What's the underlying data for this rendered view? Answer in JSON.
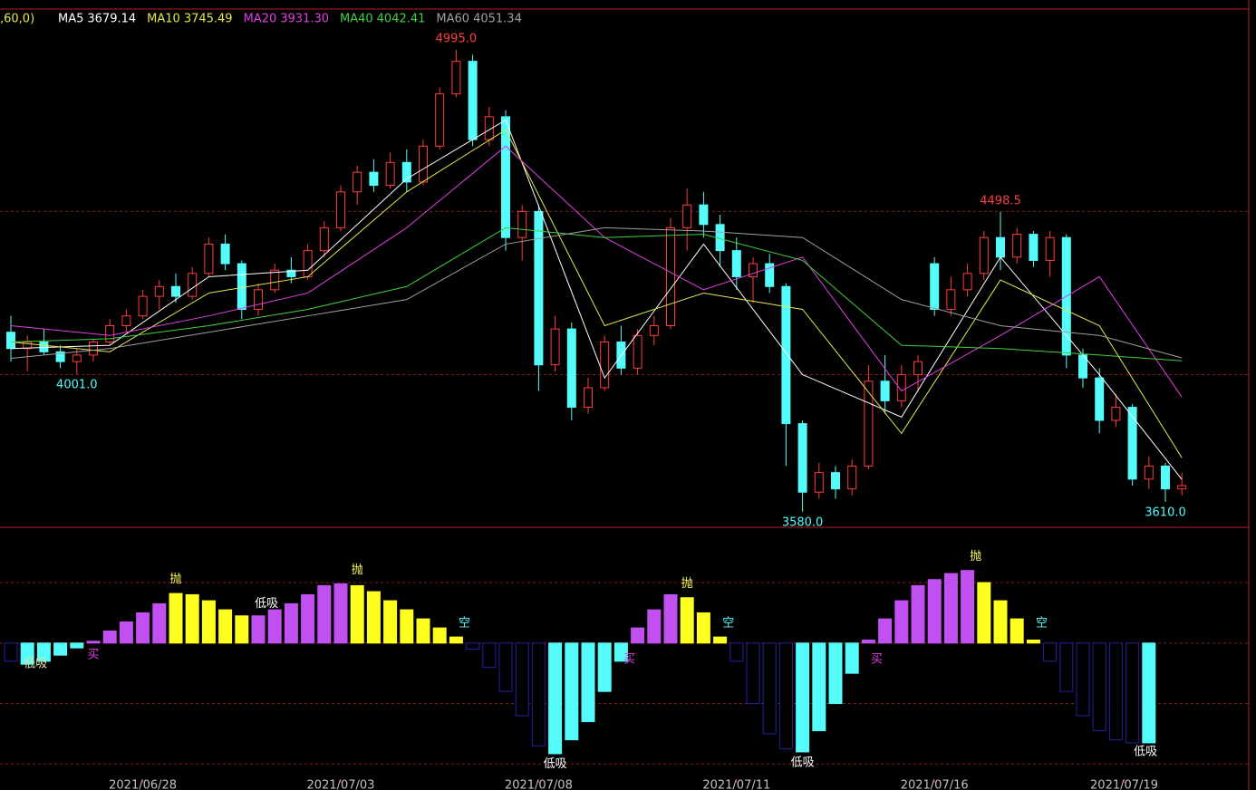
{
  "chart_data": [
    {
      "type": "candlestick",
      "header": ",60,0)",
      "ylim": [
        3538,
        5120
      ],
      "yticks": [
        4000,
        4500
      ],
      "grid": true,
      "up_color": "#ff3c3c",
      "down_color": "#54fcfc",
      "ohlc": [
        [
          4130,
          4180,
          4040,
          4080
        ],
        [
          4080,
          4120,
          4010,
          4100
        ],
        [
          4100,
          4140,
          4060,
          4070
        ],
        [
          4070,
          4090,
          4020,
          4040
        ],
        [
          4040,
          4080,
          4001,
          4060
        ],
        [
          4060,
          4110,
          4040,
          4100
        ],
        [
          4100,
          4170,
          4090,
          4150
        ],
        [
          4150,
          4200,
          4130,
          4180
        ],
        [
          4180,
          4260,
          4170,
          4240
        ],
        [
          4240,
          4290,
          4200,
          4270
        ],
        [
          4270,
          4310,
          4220,
          4240
        ],
        [
          4240,
          4330,
          4230,
          4310
        ],
        [
          4310,
          4420,
          4300,
          4400
        ],
        [
          4400,
          4430,
          4320,
          4340
        ],
        [
          4340,
          4350,
          4170,
          4200
        ],
        [
          4200,
          4280,
          4180,
          4260
        ],
        [
          4260,
          4340,
          4250,
          4320
        ],
        [
          4320,
          4360,
          4280,
          4300
        ],
        [
          4300,
          4400,
          4290,
          4380
        ],
        [
          4380,
          4470,
          4360,
          4450
        ],
        [
          4450,
          4580,
          4440,
          4560
        ],
        [
          4560,
          4640,
          4520,
          4620
        ],
        [
          4620,
          4660,
          4560,
          4580
        ],
        [
          4580,
          4680,
          4570,
          4650
        ],
        [
          4650,
          4690,
          4560,
          4590
        ],
        [
          4590,
          4720,
          4580,
          4700
        ],
        [
          4700,
          4880,
          4690,
          4860
        ],
        [
          4860,
          4995,
          4850,
          4960
        ],
        [
          4960,
          4980,
          4700,
          4720
        ],
        [
          4720,
          4820,
          4700,
          4790
        ],
        [
          4790,
          4810,
          4380,
          4420
        ],
        [
          4420,
          4520,
          4350,
          4500
        ],
        [
          4500,
          4520,
          3950,
          4030
        ],
        [
          4030,
          4180,
          4010,
          4140
        ],
        [
          4140,
          4160,
          3860,
          3900
        ],
        [
          3900,
          3990,
          3880,
          3960
        ],
        [
          3960,
          4120,
          3950,
          4100
        ],
        [
          4100,
          4150,
          4000,
          4020
        ],
        [
          4020,
          4140,
          4000,
          4120
        ],
        [
          4120,
          4180,
          4090,
          4150
        ],
        [
          4150,
          4480,
          4140,
          4450
        ],
        [
          4450,
          4570,
          4380,
          4520
        ],
        [
          4520,
          4560,
          4420,
          4460
        ],
        [
          4460,
          4490,
          4330,
          4380
        ],
        [
          4380,
          4420,
          4260,
          4300
        ],
        [
          4300,
          4360,
          4220,
          4340
        ],
        [
          4340,
          4370,
          4250,
          4270
        ],
        [
          4270,
          4280,
          3720,
          3850
        ],
        [
          3850,
          3860,
          3580,
          3640
        ],
        [
          3640,
          3730,
          3620,
          3700
        ],
        [
          3700,
          3720,
          3620,
          3650
        ],
        [
          3650,
          3740,
          3630,
          3720
        ],
        [
          3720,
          4030,
          3710,
          3980
        ],
        [
          3980,
          4060,
          3880,
          3920
        ],
        [
          3920,
          4030,
          3900,
          4000
        ],
        [
          4000,
          4060,
          3950,
          4040
        ],
        [
          4340,
          4360,
          4180,
          4200
        ],
        [
          4200,
          4300,
          4180,
          4260
        ],
        [
          4260,
          4340,
          4240,
          4310
        ],
        [
          4310,
          4440,
          4290,
          4420
        ],
        [
          4420,
          4498.5,
          4320,
          4360
        ],
        [
          4360,
          4450,
          4340,
          4430
        ],
        [
          4430,
          4440,
          4330,
          4350
        ],
        [
          4350,
          4440,
          4300,
          4420
        ],
        [
          4420,
          4430,
          4020,
          4060
        ],
        [
          4060,
          4080,
          3960,
          3990
        ],
        [
          3990,
          4020,
          3820,
          3860
        ],
        [
          3860,
          3940,
          3840,
          3900
        ],
        [
          3900,
          3910,
          3660,
          3680
        ],
        [
          3680,
          3750,
          3650,
          3720
        ],
        [
          3720,
          3730,
          3610,
          3650
        ],
        [
          3650,
          3700,
          3630,
          3660
        ]
      ],
      "ma_x": [
        0,
        6,
        12,
        18,
        24,
        30,
        36,
        42,
        48,
        54,
        60,
        66,
        71
      ],
      "series": [
        {
          "name": "MA5",
          "current": "3679.14",
          "color": "#ffffff",
          "values": [
            4080,
            4090,
            4300,
            4320,
            4600,
            4780,
            3990,
            4400,
            4000,
            3870,
            4360,
            4000,
            3679.14
          ]
        },
        {
          "name": "MA10",
          "current": "3745.49",
          "color": "#e6e64c",
          "values": [
            4100,
            4070,
            4250,
            4300,
            4560,
            4750,
            4150,
            4250,
            4200,
            3820,
            4290,
            4150,
            3745.49
          ]
        },
        {
          "name": "MA20",
          "current": "3931.30",
          "color": "#e040e0",
          "values": [
            4150,
            4120,
            4180,
            4250,
            4450,
            4700,
            4420,
            4260,
            4360,
            3950,
            4120,
            4300,
            3931.3
          ]
        },
        {
          "name": "MA40",
          "current": "4042.41",
          "color": "#40d040",
          "values": [
            4100,
            4110,
            4150,
            4200,
            4270,
            4450,
            4420,
            4430,
            4350,
            4090,
            4080,
            4060,
            4042.41
          ]
        },
        {
          "name": "MA60",
          "current": "4051.34",
          "color": "#a0a0a0",
          "values": [
            4050,
            4080,
            4130,
            4180,
            4230,
            4400,
            4450,
            4440,
            4420,
            4230,
            4150,
            4120,
            4051.34
          ]
        }
      ],
      "annotations": [
        {
          "x": 27,
          "value": 4995,
          "label": "4995.0",
          "color": "#ff4040"
        },
        {
          "x": 4,
          "value": 4001,
          "label": "4001.0",
          "color": "#54fcfc"
        },
        {
          "x": 60,
          "value": 4498.5,
          "label": "4498.5",
          "color": "#ff4040"
        },
        {
          "x": 48,
          "value": 3580,
          "label": "3580.0",
          "color": "#54fcfc"
        },
        {
          "x": 70,
          "value": 3610,
          "label": "3610.0",
          "color": "#54fcfc"
        }
      ]
    },
    {
      "type": "bar",
      "ylim": [
        -243,
        190
      ],
      "yticks": [
        -200,
        -100,
        0,
        100
      ],
      "grid": true,
      "values": [
        -30,
        -35,
        -30,
        -20,
        -8,
        3,
        20,
        35,
        50,
        65,
        82,
        80,
        70,
        55,
        45,
        45,
        55,
        65,
        80,
        95,
        98,
        95,
        85,
        70,
        55,
        40,
        25,
        10,
        -10,
        -40,
        -80,
        -120,
        -170,
        -183,
        -160,
        -130,
        -80,
        -30,
        25,
        55,
        80,
        75,
        50,
        10,
        -30,
        -100,
        -150,
        -175,
        -180,
        -145,
        -100,
        -50,
        5,
        40,
        70,
        95,
        105,
        115,
        120,
        100,
        70,
        40,
        5,
        -30,
        -80,
        -120,
        -145,
        -160,
        -165,
        -165,
        null,
        null
      ],
      "colors": [
        "#2020a0",
        "#54fcfc",
        "#54fcfc",
        "#54fcfc",
        "#54fcfc",
        "#c050f0",
        "#c050f0",
        "#c050f0",
        "#c050f0",
        "#c050f0",
        "#ffff20",
        "#ffff20",
        "#ffff20",
        "#ffff20",
        "#ffff20",
        "#c050f0",
        "#c050f0",
        "#c050f0",
        "#c050f0",
        "#c050f0",
        "#c050f0",
        "#ffff20",
        "#ffff20",
        "#ffff20",
        "#ffff20",
        "#ffff20",
        "#ffff20",
        "#ffff20",
        "#2020a0",
        "#2020a0",
        "#2020a0",
        "#2020a0",
        "#2020a0",
        "#54fcfc",
        "#54fcfc",
        "#54fcfc",
        "#54fcfc",
        "#54fcfc",
        "#c050f0",
        "#c050f0",
        "#c050f0",
        "#ffff20",
        "#ffff20",
        "#ffff20",
        "#2020a0",
        "#2020a0",
        "#2020a0",
        "#2020a0",
        "#54fcfc",
        "#54fcfc",
        "#54fcfc",
        "#54fcfc",
        "#c050f0",
        "#c050f0",
        "#c050f0",
        "#c050f0",
        "#c050f0",
        "#c050f0",
        "#c050f0",
        "#ffff20",
        "#ffff20",
        "#ffff20",
        "#ffff20",
        "#2020a0",
        "#2020a0",
        "#2020a0",
        "#2020a0",
        "#2020a0",
        "#2020a0",
        "#54fcfc",
        "#2020a0",
        "#2020a0"
      ],
      "signals": [
        {
          "x": 1.5,
          "label": "低吸",
          "color": "#e0e0a0",
          "value": -35
        },
        {
          "x": 5,
          "label": "买",
          "color": "#e040e0",
          "value": -20
        },
        {
          "x": 10,
          "label": "抛",
          "color": "#ffff60",
          "value": 105
        },
        {
          "x": 15.5,
          "label": "低吸",
          "color": "#ffffff",
          "value": 65
        },
        {
          "x": 21,
          "label": "抛",
          "color": "#ffff60",
          "value": 120
        },
        {
          "x": 27.5,
          "label": "空",
          "color": "#54fcfc",
          "value": 33
        },
        {
          "x": 33,
          "label": "低吸",
          "color": "#ffffff",
          "value": -200
        },
        {
          "x": 37.5,
          "label": "买",
          "color": "#e040e0",
          "value": -27
        },
        {
          "x": 41,
          "label": "抛",
          "color": "#ffff60",
          "value": 98
        },
        {
          "x": 43.5,
          "label": "空",
          "color": "#54fcfc",
          "value": 33
        },
        {
          "x": 48,
          "label": "低吸",
          "color": "#ffffff",
          "value": -198
        },
        {
          "x": 52.5,
          "label": "买",
          "color": "#e040e0",
          "value": -27
        },
        {
          "x": 58.5,
          "label": "抛",
          "color": "#ffff60",
          "value": 143
        },
        {
          "x": 62.5,
          "label": "空",
          "color": "#54fcfc",
          "value": 33
        },
        {
          "x": 68.8,
          "label": "低吸",
          "color": "#ffffff",
          "value": -180
        }
      ],
      "xticks": [
        {
          "value": 8,
          "label": "2021/06/28"
        },
        {
          "value": 20,
          "label": "2021/07/03"
        },
        {
          "value": 32,
          "label": "2021/07/08"
        },
        {
          "value": 44,
          "label": "2021/07/11"
        },
        {
          "value": 56,
          "label": "2021/07/16"
        },
        {
          "value": 67.5,
          "label": "2021/07/19"
        }
      ]
    }
  ]
}
